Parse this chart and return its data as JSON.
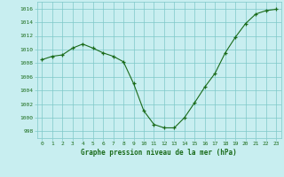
{
  "x": [
    0,
    1,
    2,
    3,
    4,
    5,
    6,
    7,
    8,
    9,
    10,
    11,
    12,
    13,
    14,
    15,
    16,
    17,
    18,
    19,
    20,
    21,
    22,
    23
  ],
  "y": [
    1008.5,
    1009.0,
    1009.2,
    1010.2,
    1010.8,
    1010.2,
    1009.5,
    1009.0,
    1008.2,
    1005.0,
    1001.0,
    999.0,
    998.5,
    998.5,
    1000.0,
    1002.2,
    1004.5,
    1006.5,
    1009.5,
    1011.8,
    1013.8,
    1015.2,
    1015.7,
    1015.9
  ],
  "line_color": "#1a6b1a",
  "marker": "+",
  "bg_color": "#c8eef0",
  "grid_color": "#7ec8c8",
  "xlabel": "Graphe pression niveau de la mer (hPa)",
  "xlabel_color": "#1a6b1a",
  "tick_label_color": "#1a6b1a",
  "ylim": [
    997,
    1017
  ],
  "xlim_min": -0.5,
  "xlim_max": 23.5,
  "yticks": [
    998,
    1000,
    1002,
    1004,
    1006,
    1008,
    1010,
    1012,
    1014,
    1016
  ],
  "xticks": [
    0,
    1,
    2,
    3,
    4,
    5,
    6,
    7,
    8,
    9,
    10,
    11,
    12,
    13,
    14,
    15,
    16,
    17,
    18,
    19,
    20,
    21,
    22,
    23
  ],
  "font_family": "monospace"
}
